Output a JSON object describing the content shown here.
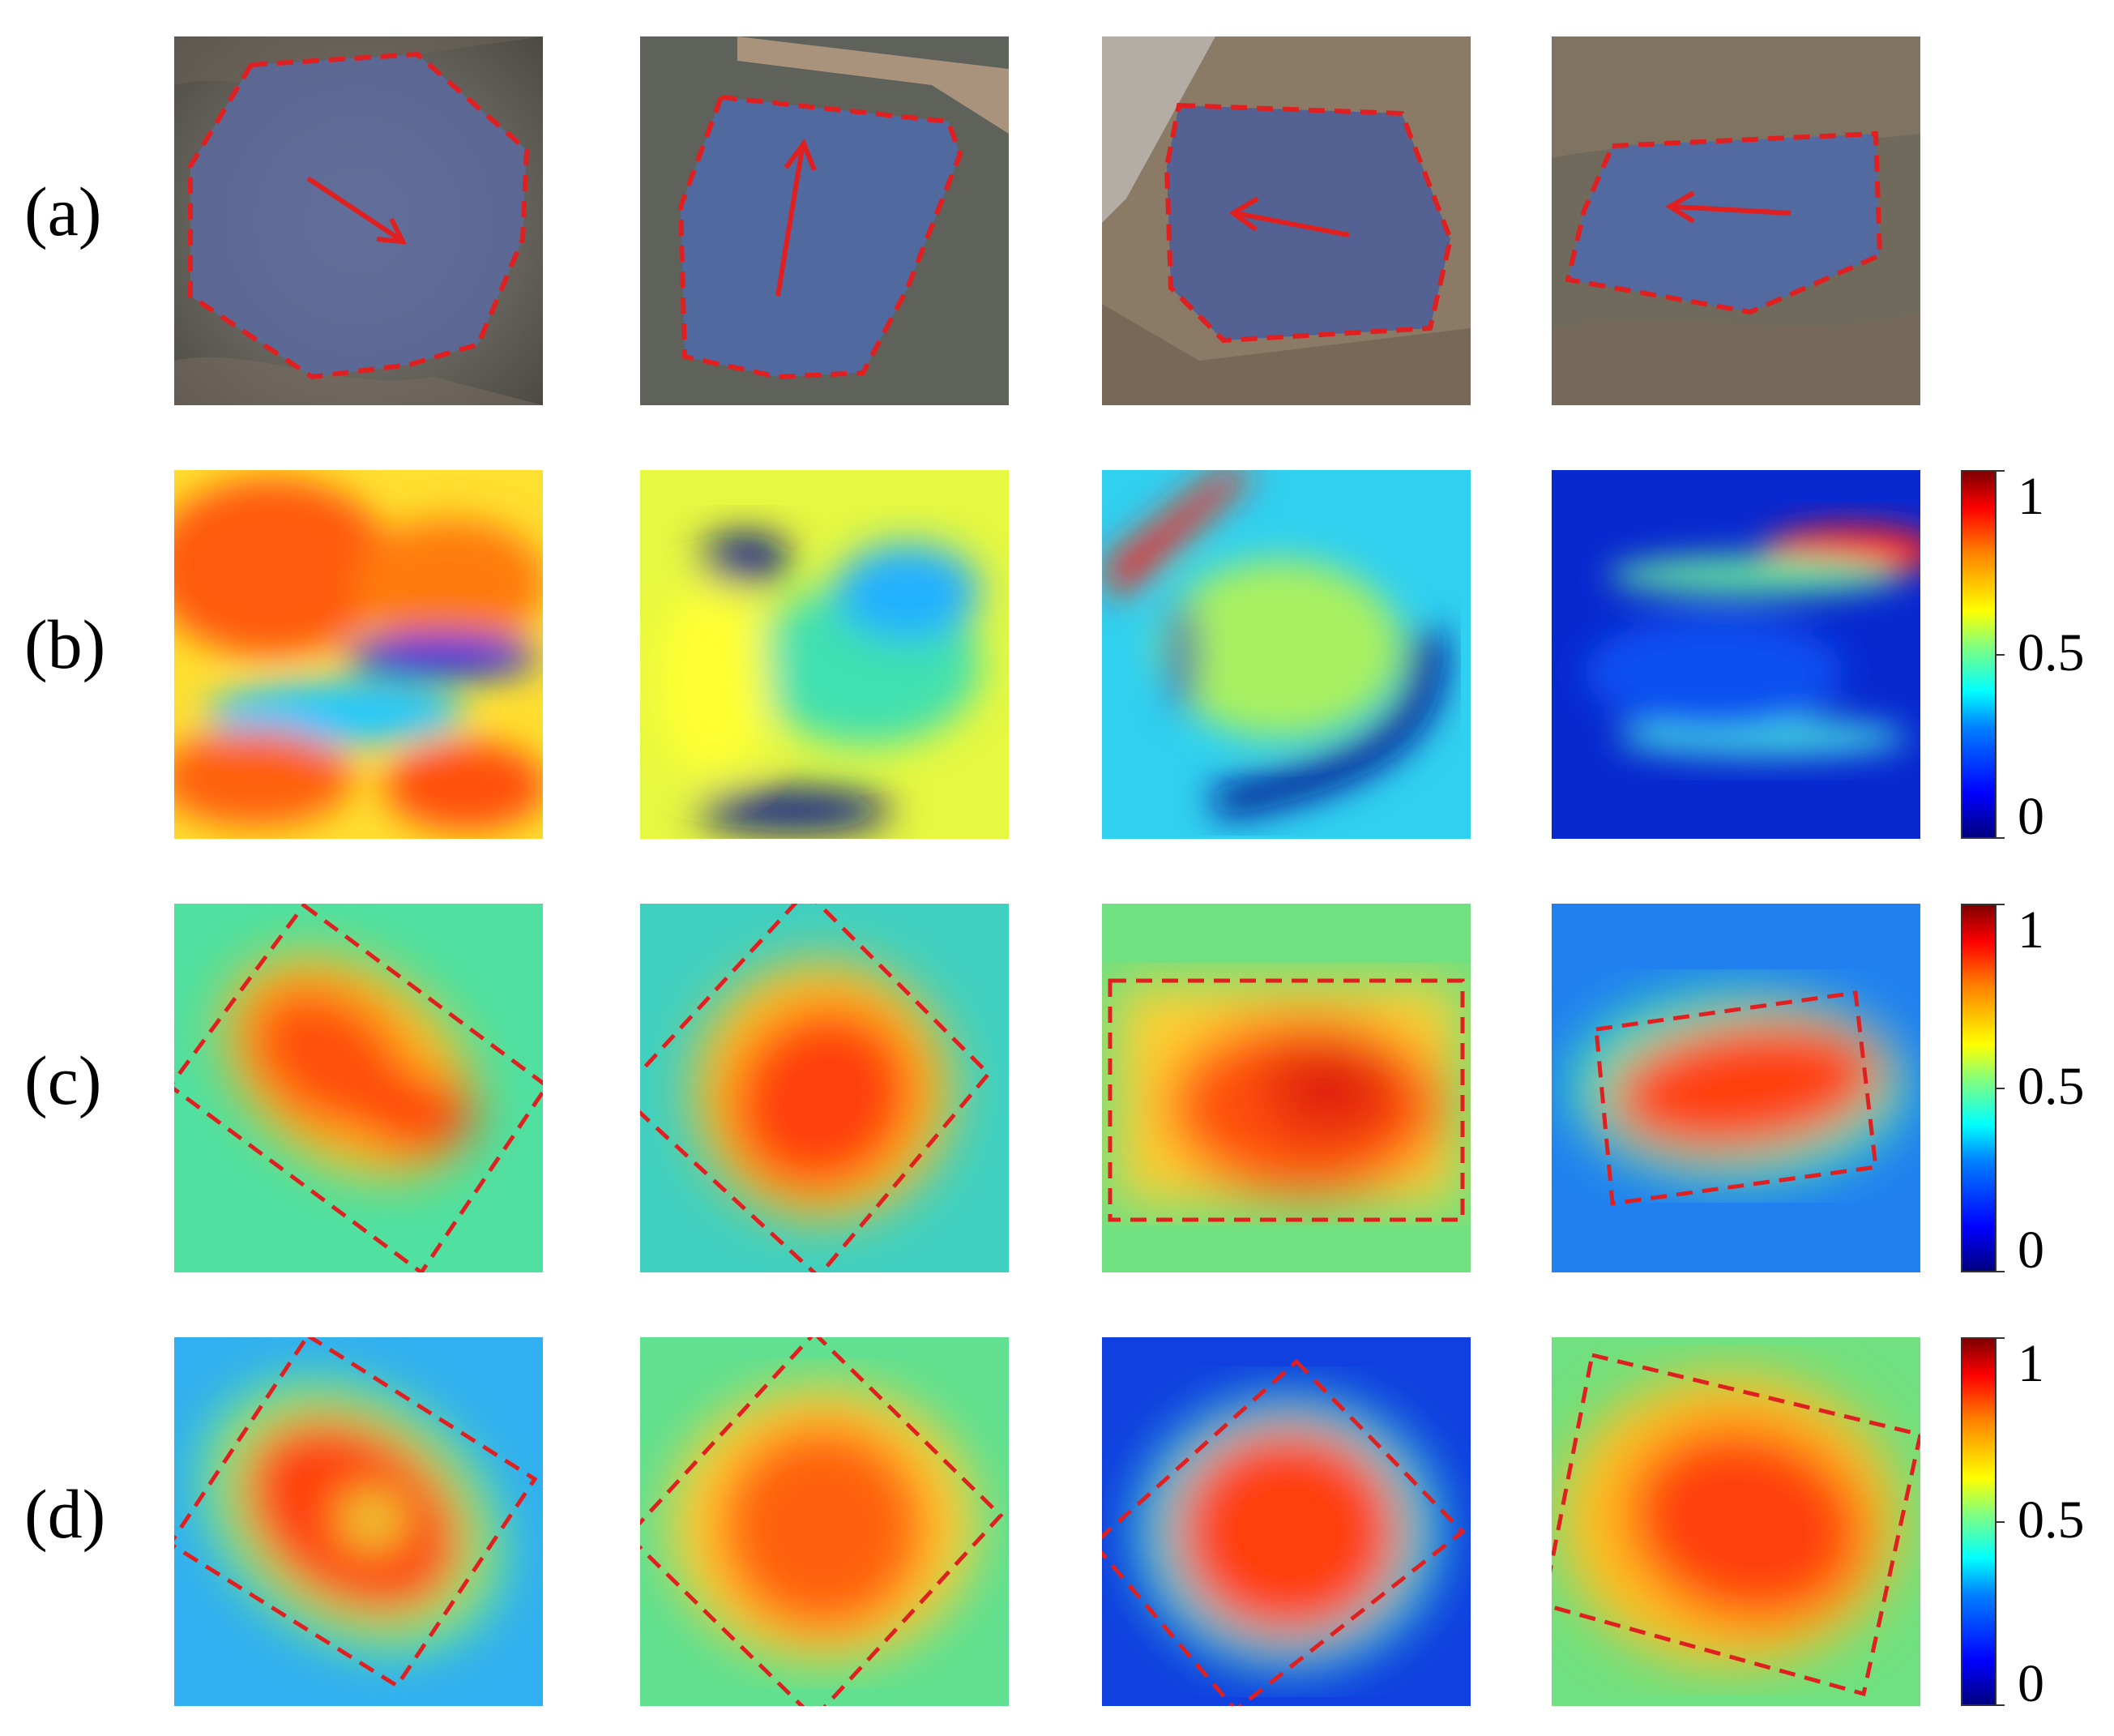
{
  "row_labels": [
    "(a)",
    "(b)",
    "(c)",
    "(d)"
  ],
  "colorbar_ticks": [
    "1",
    "0.5",
    "0"
  ],
  "colors": {
    "outline": "#e02020",
    "arrow": "#e02020",
    "colormap": [
      "#00007f",
      "#0000ff",
      "#00ffff",
      "#ffff00",
      "#ff0000",
      "#7f0000"
    ]
  }
}
